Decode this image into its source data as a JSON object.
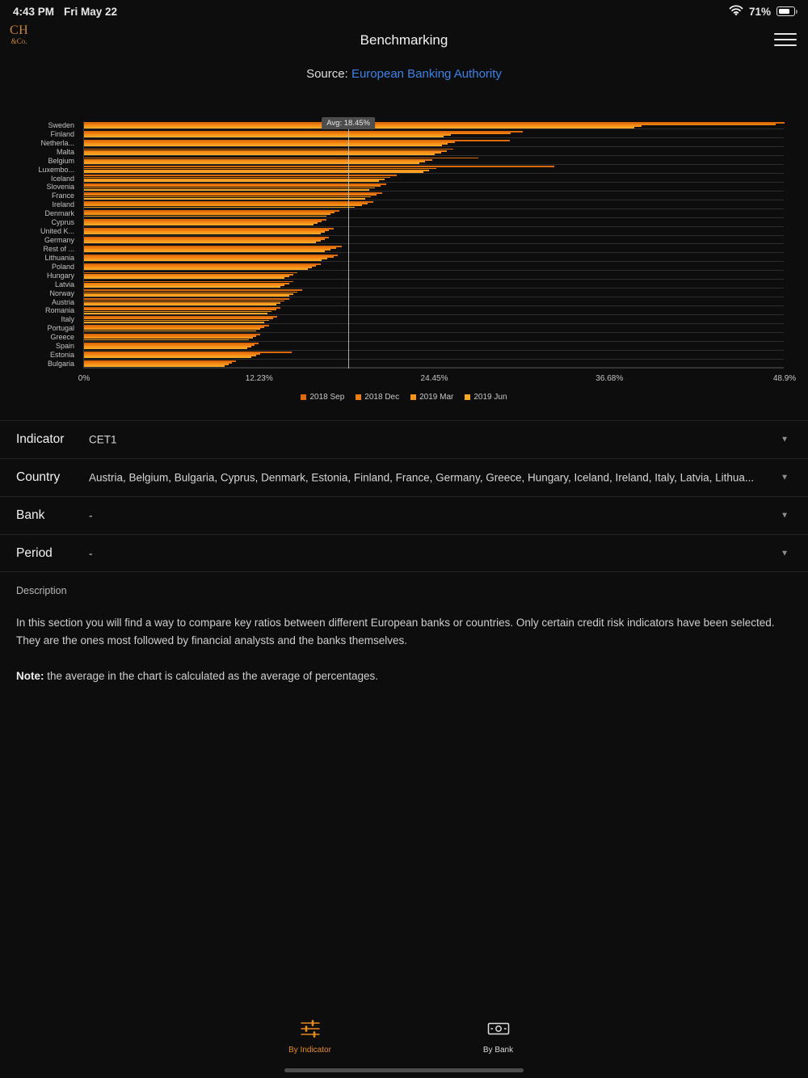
{
  "status_bar": {
    "time": "4:43 PM",
    "date": "Fri May 22",
    "battery": "71%"
  },
  "header": {
    "logo_line1": "CH",
    "logo_line2": "&Co.",
    "title": "Benchmarking"
  },
  "source": {
    "prefix": "Source:",
    "link": "European Banking Authority"
  },
  "chart_data": {
    "type": "bar",
    "orientation": "horizontal",
    "title": "",
    "xlabel": "",
    "ylabel": "",
    "xlim": [
      0,
      48.9
    ],
    "x_ticks": [
      "0%",
      "12.23%",
      "24.45%",
      "36.68%",
      "48.9%"
    ],
    "avg_label": "Avg: 18.45%",
    "avg_value": 18.45,
    "legend_position": "bottom",
    "grid": "row-lines",
    "categories": [
      "Sweden",
      "Finland",
      "Netherla...",
      "Malta",
      "Belgium",
      "Luxembo...",
      "Iceland",
      "Slovenia",
      "France",
      "Ireland",
      "Denmark",
      "Cyprus",
      "United K...",
      "Germany",
      "Rest of ...",
      "Lithuania",
      "Poland",
      "Hungary",
      "Latvia",
      "Norway",
      "Austria",
      "Romania",
      "Italy",
      "Portugal",
      "Greece",
      "Spain",
      "Estonia",
      "Bulgaria"
    ],
    "series": [
      {
        "name": "2018 Sep",
        "color": "#dd6a0a",
        "values": [
          48.9,
          30.6,
          29.7,
          25.8,
          27.5,
          32.8,
          21.8,
          21.1,
          20.8,
          20.2,
          17.8,
          16.9,
          17.4,
          17.1,
          18.0,
          17.7,
          16.5,
          14.9,
          14.6,
          15.2,
          14.3,
          13.7,
          13.5,
          12.9,
          12.3,
          12.2,
          14.5,
          10.6
        ]
      },
      {
        "name": "2018 Dec",
        "color": "#ee7e10",
        "values": [
          48.3,
          29.8,
          25.9,
          25.3,
          24.3,
          24.6,
          21.4,
          20.7,
          20.4,
          19.8,
          17.5,
          16.6,
          17.1,
          16.8,
          17.6,
          17.4,
          16.2,
          14.6,
          14.3,
          14.9,
          14.0,
          13.4,
          13.2,
          12.6,
          12.0,
          11.9,
          12.3,
          10.3
        ]
      },
      {
        "name": "2019 Mar",
        "color": "#f6931a",
        "values": [
          38.9,
          25.6,
          25.4,
          24.9,
          23.8,
          24.1,
          21.0,
          20.3,
          20.0,
          19.4,
          17.2,
          16.3,
          16.8,
          16.5,
          17.2,
          17.0,
          15.9,
          14.3,
          14.0,
          14.6,
          13.7,
          13.1,
          12.9,
          12.3,
          11.8,
          11.7,
          12.0,
          10.1
        ]
      },
      {
        "name": "2019 Jun",
        "color": "#f8a623",
        "values": [
          38.4,
          25.1,
          25.0,
          24.5,
          23.4,
          23.7,
          20.6,
          19.9,
          19.6,
          18.9,
          16.9,
          16.0,
          16.5,
          16.2,
          16.8,
          16.6,
          15.6,
          14.0,
          13.7,
          14.3,
          13.4,
          12.8,
          12.6,
          12.0,
          11.5,
          11.4,
          11.7,
          9.8
        ]
      }
    ]
  },
  "form": {
    "rows": [
      {
        "label": "Indicator",
        "value": "CET1"
      },
      {
        "label": "Country",
        "value": "Austria, Belgium, Bulgaria, Cyprus, Denmark, Estonia, Finland, France, Germany, Greece, Hungary, Iceland, Ireland, Italy, Latvia, Lithua..."
      },
      {
        "label": "Bank",
        "value": "-"
      },
      {
        "label": "Period",
        "value": "-"
      }
    ]
  },
  "description": {
    "heading": "Description",
    "paragraph": "In this section you will find a way to compare key ratios between different European banks or countries. Only certain credit risk indicators have been selected. They are the ones most followed by financial analysts and the banks themselves.",
    "note_label": "Note:",
    "note_text": " the average in the chart is calculated as the average of percentages."
  },
  "tab_bar": {
    "tabs": [
      {
        "label": "By Indicator",
        "active": true
      },
      {
        "label": "By Bank",
        "active": false
      }
    ]
  },
  "icons": {
    "status_bar": [
      "wifi-icon",
      "battery-icon"
    ],
    "header": [
      "hamburger-menu-icon"
    ],
    "form": [
      "chevron-down-icon"
    ],
    "tab_bar": [
      "sliders-icon",
      "banknote-icon"
    ]
  },
  "colors": {
    "accent": "#e88a1e",
    "link": "#3c82e8",
    "background": "#0d0d0d",
    "avg_line": "#c9c9c9"
  }
}
